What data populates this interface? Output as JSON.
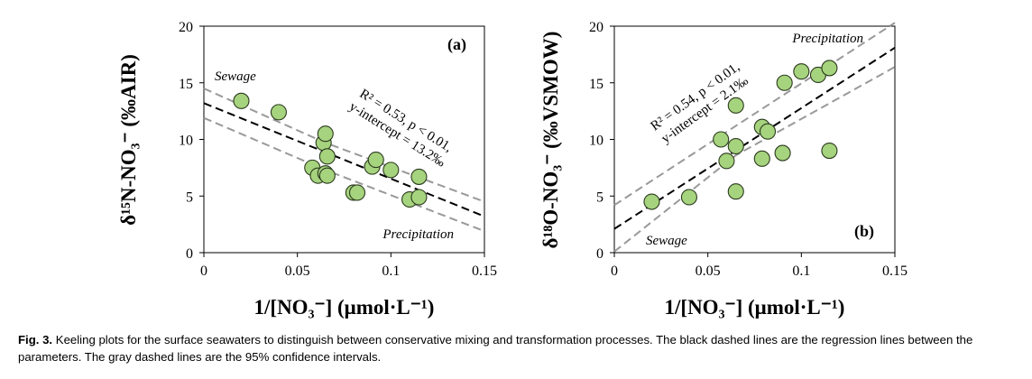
{
  "chart_data": [
    {
      "type": "scatter",
      "panel_label": "(a)",
      "xlabel": "1/[NO₃⁻]  (μmol·L⁻¹)",
      "ylabel": "δ¹⁵N-NO₃⁻ (‰AIR)",
      "xlim": [
        0,
        0.15
      ],
      "ylim": [
        0,
        20
      ],
      "x_ticks": [
        0,
        0.05,
        0.1,
        0.15
      ],
      "x_tick_labels": [
        "0",
        "0.05",
        "0.1",
        "0.15"
      ],
      "y_ticks": [
        0,
        5,
        10,
        15,
        20
      ],
      "y_tick_labels": [
        "0",
        "5",
        "10",
        "15",
        "20"
      ],
      "grid": false,
      "points": {
        "x": [
          0.02,
          0.04,
          0.058,
          0.061,
          0.064,
          0.065,
          0.065,
          0.066,
          0.08,
          0.082,
          0.09,
          0.092,
          0.1,
          0.11,
          0.115,
          0.115,
          0.066
        ],
        "y": [
          13.4,
          12.4,
          7.5,
          6.8,
          9.7,
          10.5,
          7.0,
          6.8,
          5.3,
          5.3,
          7.6,
          8.2,
          7.3,
          4.7,
          6.7,
          4.9,
          8.5
        ]
      },
      "regression": {
        "x": [
          0,
          0.15
        ],
        "y": [
          13.2,
          3.2
        ]
      },
      "ci_upper": {
        "x": [
          0,
          0.065,
          0.15
        ],
        "y": [
          14.5,
          9.7,
          4.5
        ]
      },
      "ci_lower": {
        "x": [
          0,
          0.065,
          0.15
        ],
        "y": [
          11.9,
          7.3,
          1.9
        ]
      },
      "annotations": {
        "stat_line1": "R² = 0.53, p < 0.01,",
        "stat_line2": "y-intercept = 13.2‰",
        "source_upper": "Sewage",
        "source_lower": "Precipitation"
      }
    },
    {
      "type": "scatter",
      "panel_label": "(b)",
      "xlabel": "1/[NO₃⁻]  (μmol·L⁻¹)",
      "ylabel": "δ¹⁸O-NO₃⁻ (‰VSMOW)",
      "xlim": [
        0,
        0.15
      ],
      "ylim": [
        0,
        20
      ],
      "x_ticks": [
        0,
        0.05,
        0.1,
        0.15
      ],
      "x_tick_labels": [
        "0",
        "0.05",
        "0.1",
        "0.15"
      ],
      "y_ticks": [
        0,
        5,
        10,
        15,
        20
      ],
      "y_tick_labels": [
        "0",
        "5",
        "10",
        "15",
        "20"
      ],
      "grid": false,
      "points": {
        "x": [
          0.02,
          0.04,
          0.057,
          0.06,
          0.065,
          0.065,
          0.065,
          0.079,
          0.079,
          0.082,
          0.09,
          0.091,
          0.1,
          0.109,
          0.115,
          0.115
        ],
        "y": [
          4.5,
          4.9,
          10.0,
          8.1,
          9.4,
          13.0,
          5.4,
          11.1,
          8.3,
          10.7,
          8.8,
          15.0,
          16.0,
          15.7,
          16.3,
          9.0
        ]
      },
      "regression": {
        "x": [
          0,
          0.15
        ],
        "y": [
          2.1,
          18.1
        ]
      },
      "ci_upper": {
        "x": [
          0,
          0.065,
          0.15
        ],
        "y": [
          4.2,
          11.2,
          20.3
        ]
      },
      "ci_lower": {
        "x": [
          0,
          0.065,
          0.15
        ],
        "y": [
          0.1,
          8.6,
          16.4
        ]
      },
      "annotations": {
        "stat_line1": "R² = 0.54, p < 0.01,",
        "stat_line2": "y-intercept = 2.1‰",
        "source_upper": "Precipitation",
        "source_lower": "Sewage"
      }
    }
  ],
  "style": {
    "marker_fill": "#a6d37e",
    "marker_stroke": "#2b3a1e",
    "regression_color": "#000000",
    "ci_color": "#999999"
  },
  "caption": {
    "label": "Fig. 3.",
    "text": "Keeling plots for the surface seawaters to distinguish between conservative mixing and transformation processes. The black dashed lines are the regression lines between the parameters. The gray dashed lines are the 95% confidence intervals."
  }
}
